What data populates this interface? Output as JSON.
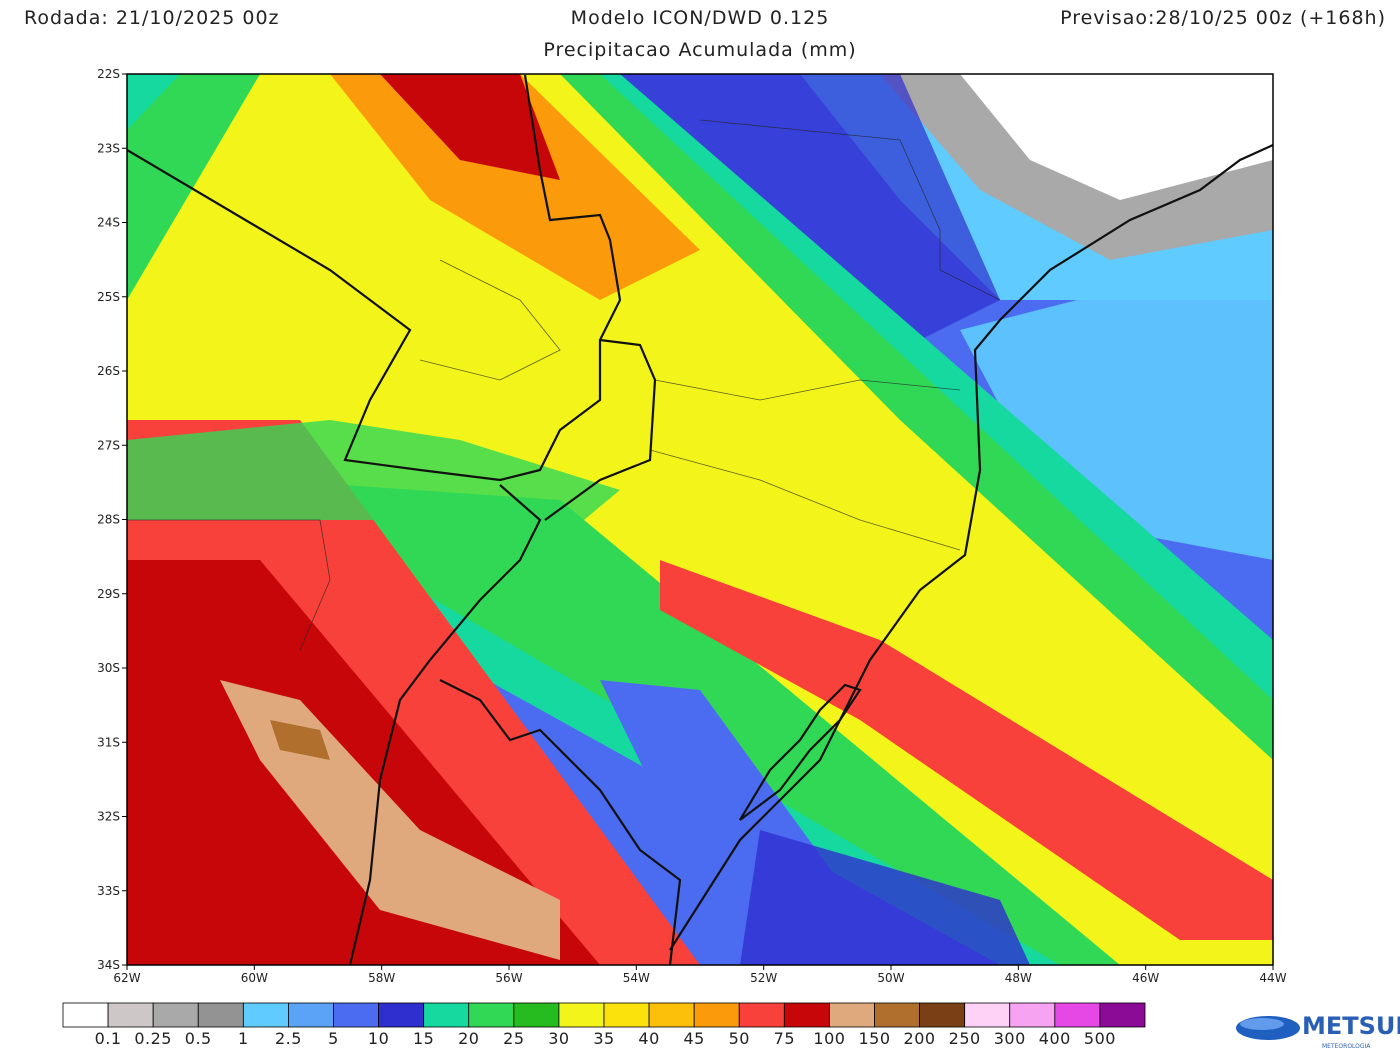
{
  "header": {
    "left": "Rodada: 21/10/2025 00z",
    "title": "Modelo ICON/DWD 0.125",
    "subtitle": "Precipitacao Acumulada (mm)",
    "right": "Previsao:28/10/25 00z (+168h)"
  },
  "map": {
    "lat_labels": [
      "22S",
      "23S",
      "24S",
      "25S",
      "26S",
      "27S",
      "28S",
      "29S",
      "30S",
      "31S",
      "32S",
      "33S",
      "34S"
    ],
    "lon_labels": [
      "62W",
      "60W",
      "58W",
      "56W",
      "54W",
      "52W",
      "50W",
      "48W",
      "46W",
      "44W"
    ]
  },
  "colorbar": {
    "colors": [
      "#ffffff",
      "#cdc7c7",
      "#a9a9a9",
      "#939393",
      "#5fcbff",
      "#5aa3f6",
      "#4b6cf0",
      "#2f2fcf",
      "#16d9a0",
      "#31d856",
      "#26bb1e",
      "#f3f51a",
      "#fbe20c",
      "#fcc00a",
      "#fb9a0b",
      "#f8413a",
      "#c7060a",
      "#dfa97d",
      "#b06f2d",
      "#7a3f14",
      "#fdd2f6",
      "#f6a3f1",
      "#e648e6",
      "#8c0b96"
    ],
    "labels": [
      "0.1",
      "0.25",
      "0.5",
      "1",
      "2.5",
      "5",
      "10",
      "15",
      "20",
      "25",
      "30",
      "35",
      "40",
      "45",
      "50",
      "75",
      "100",
      "150",
      "200",
      "250",
      "300",
      "400",
      "500"
    ]
  },
  "logo": {
    "name": "METSUL",
    "tagline": "METEOROLOGIA"
  }
}
